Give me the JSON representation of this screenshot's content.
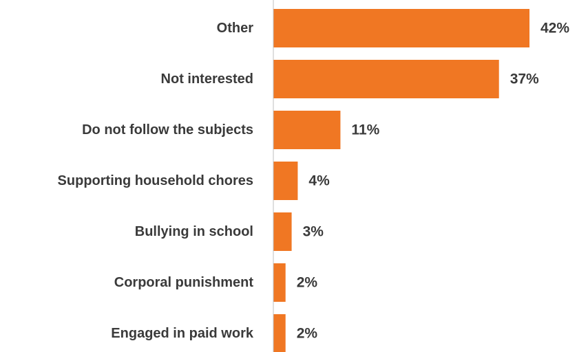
{
  "chart_data": {
    "type": "bar",
    "orientation": "horizontal",
    "categories": [
      "Other",
      "Not interested",
      "Do not follow the subjects",
      "Supporting household chores",
      "Bullying in school",
      "Corporal punishment",
      "Engaged in paid work"
    ],
    "values": [
      42,
      37,
      11,
      4,
      3,
      2,
      2
    ],
    "value_labels": [
      "42%",
      "37%",
      "11%",
      "4%",
      "3%",
      "2%",
      "2%"
    ],
    "unit": "%",
    "title": "",
    "xlabel": "",
    "ylabel": "",
    "xlim": [
      0,
      42
    ],
    "grid": false,
    "legend": "none",
    "bar_color": "#f07723",
    "axis_color": "#bfbfbf",
    "text_color": "#3a3a3a"
  }
}
